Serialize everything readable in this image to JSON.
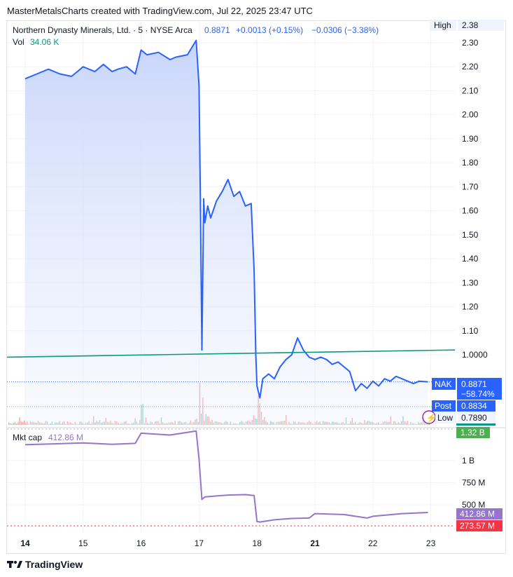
{
  "header": {
    "attribution": "MasterMetalsCharts created with TradingView.com, Jul 22, 2025 23:47 UTC"
  },
  "legend": {
    "title": "Northern Dynasty Minerals, Ltd. · 5 · NYSE Arca",
    "last": "0.8871",
    "change": "+0.0013 (+0.15%)",
    "change2": "−0.0306 (−3.38%)",
    "vol_label": "Vol",
    "vol_value": "34.06 K"
  },
  "pane2_legend": {
    "label": "Mkt cap",
    "value": "412.86 M"
  },
  "badges": {
    "high_label": "High",
    "high_value": "2.38",
    "nak_label": "NAK",
    "nak_value": "0.8871",
    "nak_pct": "−58.74%",
    "post_label": "Post",
    "post_value": "0.8834",
    "low_label": "Low",
    "low_value": "0.7890",
    "vol_badge": "1.32 B",
    "mcap_value": "412.86 M",
    "mcap_low": "273.57 M"
  },
  "footer": {
    "brand": "TradingView",
    "logo_icon": "tradingview-logo-icon"
  },
  "colors": {
    "price_line": "#2962ff",
    "price_fill_top": "#c9d6fb",
    "trendline": "#089981",
    "mcap_line": "#9575cd",
    "vol_up": "#26a69a",
    "vol_down": "#ef5350",
    "low_badge": "#ffffff",
    "mcap_low_badge": "#f23645"
  },
  "chart_data": [
    {
      "type": "area",
      "symbol": "NAK",
      "ylim": [
        0.76,
        2.36
      ],
      "yticks": [
        2.3,
        2.2,
        2.1,
        2.0,
        1.9,
        1.8,
        1.7,
        1.6,
        1.5,
        1.4,
        1.3,
        1.2,
        1.1,
        1.0
      ],
      "ytick_labels": [
        "2.30",
        "2.20",
        "2.10",
        "2.00",
        "1.90",
        "1.80",
        "1.70",
        "1.60",
        "1.50",
        "1.40",
        "1.30",
        "1.20",
        "1.10",
        "1.0000"
      ],
      "xticks": [
        "14",
        "15",
        "16",
        "17",
        "18",
        "21",
        "22",
        "23"
      ],
      "bold_ticks": [
        "14",
        "21"
      ],
      "x": [
        0,
        0.2,
        0.4,
        0.6,
        0.8,
        0.9,
        1.0,
        1.2,
        1.35,
        1.5,
        1.6,
        1.75,
        1.9,
        2.0,
        2.1,
        2.3,
        2.5,
        2.6,
        2.8,
        2.95,
        3.0,
        3.02,
        3.05,
        3.08,
        3.1,
        3.15,
        3.2,
        3.3,
        3.4,
        3.5,
        3.6,
        3.7,
        3.8,
        3.9,
        3.95,
        3.98,
        4.0,
        4.05,
        4.1,
        4.2,
        4.3,
        4.4,
        4.5,
        4.6,
        4.7,
        4.8,
        4.9,
        5.0,
        5.1,
        5.2,
        5.3,
        5.4,
        5.5,
        5.6,
        5.7,
        5.8,
        5.9,
        6.0,
        6.1,
        6.2,
        6.3,
        6.4,
        6.5,
        6.6,
        6.7,
        6.8,
        6.95
      ],
      "y": [
        2.15,
        2.17,
        2.19,
        2.17,
        2.16,
        2.18,
        2.2,
        2.18,
        2.21,
        2.18,
        2.19,
        2.2,
        2.17,
        2.27,
        2.25,
        2.26,
        2.23,
        2.24,
        2.25,
        2.31,
        2.12,
        1.7,
        1.02,
        1.65,
        1.55,
        1.62,
        1.57,
        1.64,
        1.68,
        1.73,
        1.66,
        1.68,
        1.62,
        1.63,
        1.35,
        1.0,
        0.87,
        0.82,
        0.9,
        0.92,
        0.9,
        0.95,
        0.98,
        1.0,
        1.07,
        1.02,
        0.99,
        0.98,
        0.99,
        0.98,
        0.96,
        0.97,
        0.95,
        0.93,
        0.85,
        0.88,
        0.86,
        0.89,
        0.87,
        0.9,
        0.89,
        0.91,
        0.9,
        0.89,
        0.88,
        0.89,
        0.8871
      ],
      "trendline": {
        "y_start": 0.99,
        "y_end": 1.02
      },
      "volume": {
        "spike_days": [
          3.0,
          4.0
        ]
      }
    },
    {
      "type": "line",
      "series": [
        {
          "name": "Mkt cap"
        }
      ],
      "yticks": [
        1000,
        750,
        500
      ],
      "ytick_labels": [
        "1 B",
        "750 M",
        "500 M"
      ],
      "ylim": [
        200,
        1400
      ],
      "x": [
        0,
        0.5,
        1.0,
        1.5,
        1.9,
        2.0,
        2.5,
        2.95,
        3.0,
        3.05,
        3.1,
        3.3,
        3.5,
        3.8,
        3.95,
        4.0,
        4.05,
        4.3,
        4.6,
        4.9,
        5.0,
        5.5,
        5.9,
        6.0,
        6.5,
        6.95
      ],
      "y": [
        1180,
        1190,
        1200,
        1185,
        1195,
        1310,
        1290,
        1335,
        1020,
        560,
        590,
        600,
        610,
        615,
        605,
        310,
        305,
        330,
        345,
        350,
        400,
        390,
        350,
        370,
        400,
        412.86
      ]
    }
  ]
}
